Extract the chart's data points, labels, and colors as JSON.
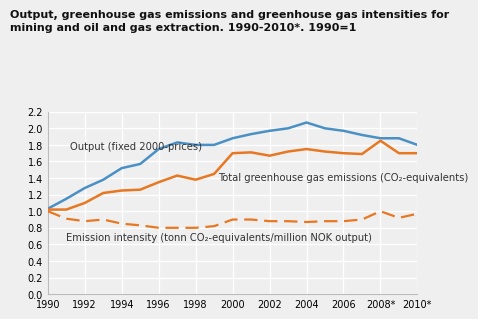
{
  "title_line1": "Output, greenhouse gas emissions and greenhouse gas intensities for",
  "title_line2": "mining and oil and gas extraction. 1990-2010*. 1990=1",
  "years": [
    1990,
    1991,
    1992,
    1993,
    1994,
    1995,
    1996,
    1997,
    1998,
    1999,
    2000,
    2001,
    2002,
    2003,
    2004,
    2005,
    2006,
    2007,
    2008,
    2009,
    2010
  ],
  "output": [
    1.03,
    1.15,
    1.28,
    1.38,
    1.52,
    1.57,
    1.75,
    1.83,
    1.8,
    1.8,
    1.88,
    1.93,
    1.97,
    2.0,
    2.07,
    2.0,
    1.97,
    1.92,
    1.88,
    1.88,
    1.8
  ],
  "ghg_emissions": [
    1.02,
    1.02,
    1.1,
    1.22,
    1.25,
    1.26,
    1.35,
    1.43,
    1.38,
    1.45,
    1.7,
    1.71,
    1.67,
    1.72,
    1.75,
    1.72,
    1.7,
    1.69,
    1.85,
    1.7,
    1.7
  ],
  "emission_intensity": [
    1.0,
    0.91,
    0.88,
    0.9,
    0.85,
    0.83,
    0.8,
    0.8,
    0.8,
    0.82,
    0.9,
    0.9,
    0.88,
    0.88,
    0.87,
    0.88,
    0.88,
    0.9,
    1.0,
    0.92,
    0.97
  ],
  "color_blue": "#4a90c4",
  "color_orange": "#e87722",
  "ylim": [
    0.0,
    2.2
  ],
  "yticks": [
    0.0,
    0.2,
    0.4,
    0.6,
    0.8,
    1.0,
    1.2,
    1.4,
    1.6,
    1.8,
    2.0,
    2.2
  ],
  "xtick_labels": [
    "1990",
    "1992",
    "1994",
    "1996",
    "1998",
    "2000",
    "2002",
    "2004",
    "2006",
    "2008*",
    "2010*"
  ],
  "xtick_positions": [
    1990,
    1992,
    1994,
    1996,
    1998,
    2000,
    2002,
    2004,
    2006,
    2008,
    2010
  ],
  "label_output": "Output (fixed 2000-prices)",
  "label_ghg": "Total greenhouse gas emissions (CO₂-equivalents)",
  "label_intensity": "Emission intensity (tonn CO₂-equivalents/million NOK output)",
  "bg_color": "#efefef",
  "grid_color": "#ffffff",
  "title_fontsize": 8.0,
  "label_fontsize": 7.2,
  "tick_fontsize": 7.0
}
